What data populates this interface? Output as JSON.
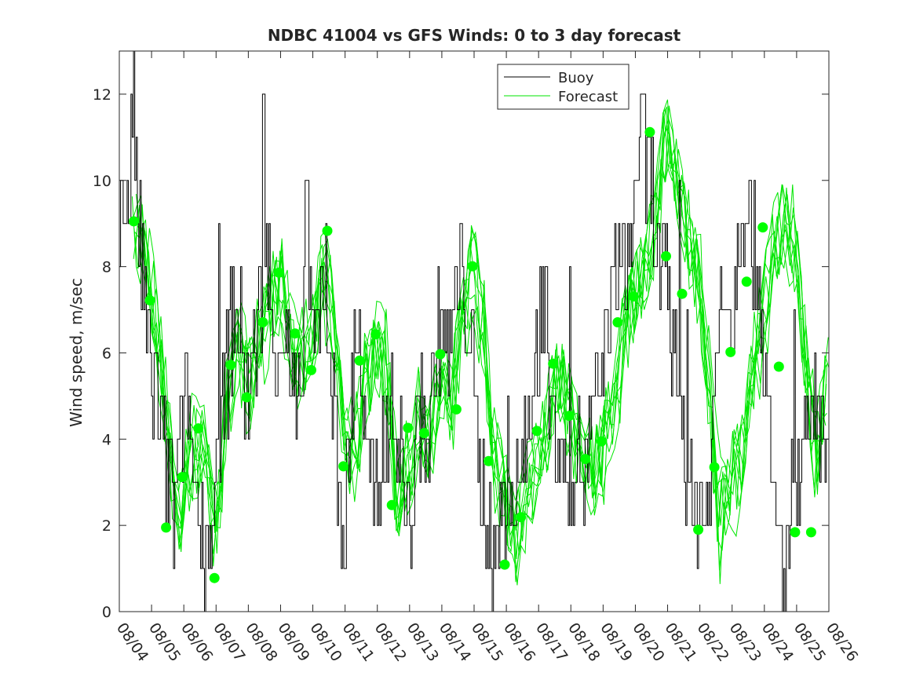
{
  "chart_data": {
    "type": "line",
    "title": "NDBC 41004 vs GFS Winds: 0 to 3 day forecast",
    "xlabel": "",
    "ylabel": "Wind speed, m/sec",
    "xlim": [
      0,
      22
    ],
    "ylim": [
      0,
      13
    ],
    "yticks": [
      0,
      2,
      4,
      6,
      8,
      10,
      12
    ],
    "ytick_labels": [
      "0",
      "2",
      "4",
      "6",
      "8",
      "10",
      "12"
    ],
    "xticks": [
      0,
      1,
      2,
      3,
      4,
      5,
      6,
      7,
      8,
      9,
      10,
      11,
      12,
      13,
      14,
      15,
      16,
      17,
      18,
      19,
      20,
      21,
      22
    ],
    "xtick_labels": [
      "08/04",
      "08/05",
      "08/06",
      "08/07",
      "08/08",
      "08/09",
      "08/10",
      "08/11",
      "08/12",
      "08/13",
      "08/14",
      "08/15",
      "08/16",
      "08/17",
      "08/18",
      "08/19",
      "08/20",
      "08/21",
      "08/22",
      "08/23",
      "08/24",
      "08/25",
      "08/26"
    ],
    "grid": false,
    "legend": {
      "position": "top-right",
      "entries": [
        {
          "label": "Buoy",
          "color": "#000000"
        },
        {
          "label": "Forecast",
          "color": "#00e600"
        }
      ]
    },
    "colors": {
      "buoy": "#000000",
      "forecast": "#00e600",
      "marker": "#00ff00"
    },
    "buoy_anchors": {
      "x": [
        0,
        0.3,
        0.45,
        0.5,
        0.6,
        0.8,
        0.95,
        1.1,
        1.3,
        1.5,
        1.7,
        1.9,
        2.1,
        2.3,
        2.6,
        2.9,
        3.0,
        3.2,
        3.4,
        3.6,
        3.8,
        4.0,
        4.3,
        4.6,
        4.8,
        5.0,
        5.2,
        5.4,
        5.6,
        5.8,
        5.9,
        6.0,
        6.2,
        6.4,
        6.6,
        6.8,
        7.0,
        7.2,
        7.4,
        7.6,
        7.8,
        8.0,
        8.2,
        8.4,
        8.6,
        8.8,
        9.0,
        9.2,
        9.4,
        9.6,
        9.8,
        10.0,
        10.2,
        10.4,
        10.6,
        10.8,
        11.0,
        11.2,
        11.4,
        11.6,
        11.8,
        12.0,
        12.2,
        12.4,
        12.6,
        12.8,
        13.0,
        13.2,
        13.4,
        13.6,
        13.8,
        14.0,
        14.2,
        14.4,
        14.6,
        14.8,
        15.0,
        15.2,
        15.4,
        15.6,
        15.8,
        16.0,
        16.2,
        16.4,
        16.6,
        16.8,
        17.0,
        17.2,
        17.4,
        17.6,
        17.8,
        18.0,
        18.2,
        18.4,
        18.6,
        18.8,
        19.0,
        19.2,
        19.4,
        19.6,
        19.8,
        20.0,
        20.2,
        20.4,
        20.6,
        20.8,
        21.0,
        21.2,
        21.4,
        21.6,
        21.8,
        22.0
      ],
      "y": [
        9,
        10,
        12,
        10,
        9,
        7,
        6,
        5,
        4,
        3,
        2,
        4,
        5,
        3,
        2,
        1.5,
        3,
        5,
        6,
        7,
        6,
        5,
        7,
        8,
        6,
        7,
        6,
        5,
        4,
        11,
        7,
        6,
        7,
        8,
        5,
        3,
        2,
        5,
        7,
        4,
        3,
        2,
        4,
        5,
        4,
        3,
        2,
        4,
        5,
        4,
        6,
        7,
        6,
        7,
        8,
        7,
        5,
        3,
        2,
        1,
        2,
        3,
        2,
        3,
        4,
        5,
        6,
        7,
        5,
        4,
        3,
        3,
        4,
        3,
        4,
        5,
        6,
        7,
        8,
        8,
        8,
        10,
        11,
        10,
        9,
        8,
        7,
        6,
        5,
        3,
        2,
        3,
        2,
        4,
        7,
        8,
        6,
        9,
        10,
        9,
        8,
        6,
        3,
        2,
        1,
        2,
        3,
        4,
        5,
        4,
        4,
        5
      ]
    },
    "forecast_anchors": {
      "x": [
        0.4,
        0.8,
        1.2,
        1.5,
        1.8,
        2.0,
        2.3,
        2.6,
        3.0,
        3.3,
        3.6,
        4.0,
        4.3,
        4.6,
        5.0,
        5.3,
        5.6,
        6.0,
        6.3,
        6.6,
        7.0,
        7.3,
        7.6,
        8.0,
        8.3,
        8.6,
        9.0,
        9.3,
        9.6,
        10.0,
        10.3,
        10.6,
        11.0,
        11.3,
        11.6,
        12.0,
        12.3,
        12.6,
        13.0,
        13.3,
        13.6,
        14.0,
        14.3,
        14.6,
        15.0,
        15.3,
        15.6,
        16.0,
        16.3,
        16.6,
        17.0,
        17.3,
        17.6,
        18.0,
        18.3,
        18.6,
        19.0,
        19.3,
        19.6,
        20.0,
        20.3,
        20.6,
        21.0,
        21.3,
        21.6,
        22.0
      ],
      "y": [
        9.0,
        8.5,
        6.5,
        4.5,
        2.0,
        2.8,
        3.8,
        3.6,
        1.5,
        4.5,
        6.0,
        5.2,
        6.2,
        7.0,
        7.8,
        6.5,
        6.0,
        6.5,
        8.0,
        7.0,
        4.0,
        3.5,
        5.0,
        6.0,
        5.5,
        2.5,
        3.5,
        4.5,
        4.0,
        6.0,
        4.8,
        7.0,
        8.0,
        6.5,
        3.5,
        2.5,
        1.5,
        2.5,
        3.5,
        4.5,
        5.5,
        4.5,
        3.5,
        3.5,
        3.9,
        4.5,
        6.5,
        7.5,
        8.0,
        9.0,
        11.0,
        10.0,
        8.5,
        7.5,
        5.0,
        2.0,
        3.0,
        3.5,
        5.5,
        7.0,
        8.5,
        9.0,
        8.5,
        5.5,
        3.5,
        5.5
      ]
    },
    "forecast_markers": {
      "x": [
        0.45,
        0.95,
        1.45,
        1.95,
        2.45,
        2.95,
        3.45,
        3.95,
        4.45,
        4.95,
        5.45,
        5.95,
        6.45,
        6.95,
        7.45,
        7.95,
        8.45,
        8.95,
        9.45,
        9.95,
        10.45,
        10.95,
        11.45,
        11.95,
        12.45,
        12.95,
        13.45,
        13.95,
        14.45,
        14.95,
        15.45,
        15.95,
        16.45,
        16.95,
        17.45,
        17.95,
        18.45,
        18.95,
        19.45,
        19.95,
        20.45,
        20.95,
        21.45
      ],
      "y": [
        9.05,
        7.22,
        1.95,
        3.12,
        4.25,
        0.78,
        5.72,
        4.97,
        6.71,
        7.86,
        6.45,
        5.6,
        8.83,
        3.37,
        5.82,
        6.43,
        2.47,
        4.26,
        4.14,
        5.97,
        4.69,
        8.01,
        3.49,
        1.09,
        2.19,
        4.19,
        5.75,
        4.54,
        3.54,
        3.95,
        6.71,
        7.31,
        11.12,
        8.24,
        7.37,
        1.9,
        3.35,
        6.02,
        7.65,
        8.91,
        5.68,
        1.84,
        1.84
      ]
    }
  }
}
